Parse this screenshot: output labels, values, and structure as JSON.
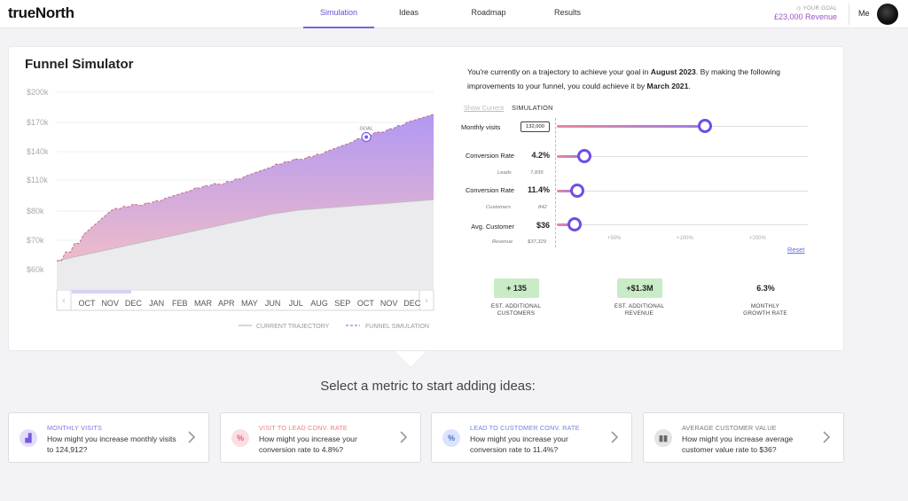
{
  "header": {
    "logo": "trueNorth",
    "tabs": [
      "Simulation",
      "Ideas",
      "Roadmap",
      "Results"
    ],
    "goal_label": "YOUR GOAL",
    "goal_value": "£23,000 Revenue",
    "user": "Me"
  },
  "simulator": {
    "title": "Funnel Simulator",
    "goal_marker": "GOAL",
    "legend_current": "CURRENT TRAJECTORY",
    "legend_sim": "FUNNEL SIMULATION",
    "nav_prev": "‹",
    "nav_next": "›"
  },
  "chart_data": {
    "type": "area",
    "y_ticks": [
      "$200k",
      "$170k",
      "$140k",
      "$110k",
      "$80k",
      "$70k",
      "$60k"
    ],
    "x_ticks": [
      "OCT",
      "NOV",
      "DEC",
      "JAN",
      "FEB",
      "MAR",
      "APR",
      "MAY",
      "JUN",
      "JUL",
      "AUG",
      "SEP",
      "OCT",
      "NOV",
      "DEC"
    ],
    "series": [
      {
        "name": "CURRENT TRAJECTORY",
        "style": "solid",
        "color": "#c8c8cc",
        "values": [
          63,
          65,
          67,
          69,
          71,
          73,
          75,
          77,
          79,
          81,
          83,
          85,
          87,
          89,
          91
        ]
      },
      {
        "name": "FUNNEL SIMULATION",
        "style": "dashed",
        "color": "#a888f0",
        "values": [
          63,
          72,
          80,
          86,
          92,
          100,
          106,
          114,
          124,
          132,
          140,
          150,
          160,
          170,
          178
        ]
      }
    ]
  },
  "panel": {
    "intro_1": "You're currently on a trajectory to achieve your goal in ",
    "intro_date_current": "August 2023",
    "intro_2": ". By making the following improvements to your funnel, you could achieve it by ",
    "intro_date_new": "March 2021",
    "intro_3": ".",
    "seg_current": "Show Current",
    "seg_sim": "SIMULATION",
    "rows": {
      "visits_label": "Monthly visits",
      "visits_value": "132,000",
      "conv1_label": "Conversion Rate",
      "conv1_value": "4.2%",
      "leads_label": "Leads",
      "leads_value": "7,839",
      "conv2_label": "Conversion Rate",
      "conv2_value": "11.4%",
      "customers_label": "Customers",
      "customers_value": "842",
      "avg_label": "Avg. Customer",
      "avg_value": "$36",
      "revenue_label": "Revenue",
      "revenue_value": "$37,329"
    },
    "slider_levels": {
      "visits": 0.59,
      "conv1": 0.11,
      "conv2": 0.08,
      "avg": 0.07
    },
    "pct_labels": [
      "+50%",
      "+100%",
      "+200%"
    ],
    "reset": "Reset",
    "stats": [
      {
        "value": "+ 135",
        "caption_1": "EST. ADDITIONAL",
        "caption_2": "CUSTOMERS"
      },
      {
        "value": "+$1.3M",
        "caption_1": "EST. ADDITIONAL",
        "caption_2": "REVENUE"
      },
      {
        "value": "6.3%",
        "caption_1": "MONTHLY",
        "caption_2": "GROWTH RATE"
      }
    ]
  },
  "ideas": {
    "title": "Select a metric to start adding ideas:",
    "cards": [
      {
        "head": "MONTHLY VISITS",
        "head_color": "#8f6fe6",
        "icon": "chart-icon",
        "icon_glyph": "▟",
        "icon_bg": "#e4dcfb",
        "icon_color": "#7a58e0",
        "body": "How might you increase monthly visits to 124,912?"
      },
      {
        "head": "VISIT TO LEAD CONV. RATE",
        "head_color": "#ee7d88",
        "icon": "percent-icon",
        "icon_glyph": "%",
        "icon_bg": "#fbdfe2",
        "icon_color": "#e8616d",
        "body": "How might you increase your conversion rate to 4.8%?"
      },
      {
        "head": "LEAD TO CUSTOMER CONV. RATE",
        "head_color": "#6a86e0",
        "icon": "percent-icon",
        "icon_glyph": "%",
        "icon_bg": "#dbe4fb",
        "icon_color": "#4c6fd8",
        "body": "How might you increase your conversion rate to 11.4%?"
      },
      {
        "head": "AVERAGE CUSTOMER VALUE",
        "head_color": "#777777",
        "icon": "coins-icon",
        "icon_glyph": "▮▮",
        "icon_bg": "#e4e4e6",
        "icon_color": "#666666",
        "body": "How might you increase average customer value rate to $36?"
      }
    ]
  }
}
